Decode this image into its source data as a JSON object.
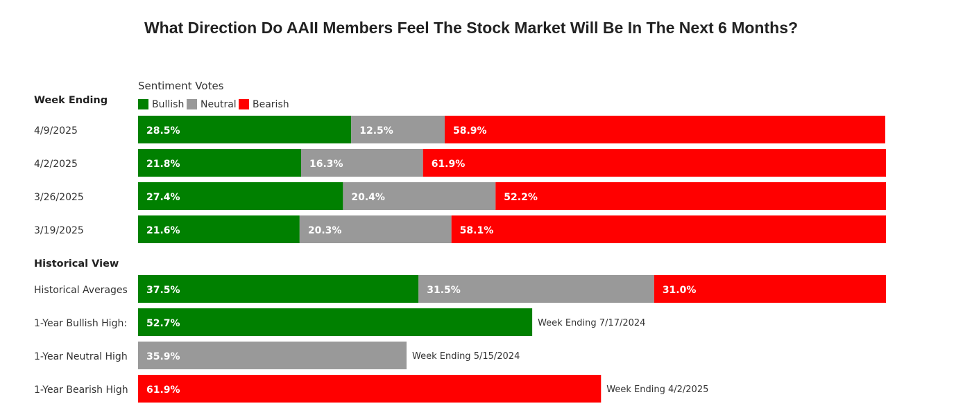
{
  "chart_data": {
    "type": "bar",
    "orientation": "horizontal",
    "stacked": true,
    "title": "What Direction Do AAII Members Feel The Stock Market Will Be In The Next 6 Months?",
    "legend_title": "Sentiment Votes",
    "legend_placement": "top-left",
    "row_header": "Week Ending",
    "section_header": "Historical View",
    "grid": false,
    "series": [
      {
        "name": "Bullish",
        "color": "#008000"
      },
      {
        "name": "Neutral",
        "color": "#999999"
      },
      {
        "name": "Bearish",
        "color": "#ff0000"
      }
    ],
    "weekly_rows": [
      {
        "label": "4/9/2025",
        "values": [
          28.5,
          12.5,
          58.9
        ],
        "texts": [
          "28.5%",
          "12.5%",
          "58.9%"
        ]
      },
      {
        "label": "4/2/2025",
        "values": [
          21.8,
          16.3,
          61.9
        ],
        "texts": [
          "21.8%",
          "16.3%",
          "61.9%"
        ]
      },
      {
        "label": "3/26/2025",
        "values": [
          27.4,
          20.4,
          52.2
        ],
        "texts": [
          "27.4%",
          "20.4%",
          "52.2%"
        ]
      },
      {
        "label": "3/19/2025",
        "values": [
          21.6,
          20.3,
          58.1
        ],
        "texts": [
          "21.6%",
          "20.3%",
          "58.1%"
        ]
      }
    ],
    "historical_rows": [
      {
        "label": "Historical Averages",
        "values": [
          37.5,
          31.5,
          31.0
        ],
        "texts": [
          "37.5%",
          "31.5%",
          "31.0%"
        ],
        "annotation": ""
      },
      {
        "label": "1-Year Bullish High:",
        "series_index": 0,
        "value": 52.7,
        "text": "52.7%",
        "annotation": "Week Ending 7/17/2024"
      },
      {
        "label": "1-Year Neutral High",
        "series_index": 1,
        "value": 35.9,
        "text": "35.9%",
        "annotation": "Week Ending 5/15/2024"
      },
      {
        "label": "1-Year Bearish High",
        "series_index": 2,
        "value": 61.9,
        "text": "61.9%",
        "annotation": "Week Ending 4/2/2025"
      }
    ]
  }
}
